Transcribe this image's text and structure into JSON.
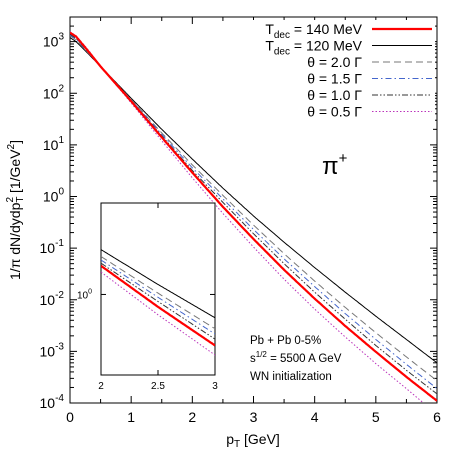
{
  "chart_data": {
    "type": "line",
    "xlabel": "p",
    "xlabel_sub": "T",
    "xlabel_unit": " [GeV]",
    "ylabel": "1/π dN/dydp",
    "ylabel_sub": "T",
    "ylabel_sup": "2",
    "ylabel_unit": " [1/GeV",
    "ylabel_unit_sup": "2",
    "ylabel_unit_end": "]",
    "xlim": [
      0,
      6
    ],
    "ylim": [
      0.0001,
      3000
    ],
    "yscale": "log",
    "xticks": [
      "0",
      "1",
      "2",
      "3",
      "4",
      "5",
      "6"
    ],
    "yticks": [
      {
        "base": "10",
        "exp": "3"
      },
      {
        "base": "10",
        "exp": "2"
      },
      {
        "base": "10",
        "exp": "1"
      },
      {
        "base": "10",
        "exp": "0"
      },
      {
        "base": "10",
        "exp": "-1"
      },
      {
        "base": "10",
        "exp": "-2"
      },
      {
        "base": "10",
        "exp": "-3"
      },
      {
        "base": "10",
        "exp": "-4"
      }
    ],
    "legend_position": "top-right",
    "particle_label": {
      "base": "π",
      "sup": "+"
    },
    "annotations": [
      "Pb + Pb  0-5%",
      "s",
      "1/2",
      " = 5500 A GeV",
      "WN initialization"
    ],
    "series": [
      {
        "name": "T",
        "name_sub": "dec",
        "name_rest": " = 140 MeV",
        "color": "#ff0000",
        "width": 2.2,
        "dash": "",
        "x": [
          0.0,
          0.1,
          0.3,
          0.5,
          1.0,
          1.5,
          2.0,
          2.5,
          3.0,
          3.5,
          4.0,
          4.5,
          5.0,
          5.5,
          6.0
        ],
        "values": [
          1500,
          1250,
          650,
          330,
          70,
          14,
          2.9,
          0.63,
          0.15,
          0.038,
          0.0105,
          0.0031,
          0.00098,
          0.00032,
          0.00011
        ]
      },
      {
        "name": "T",
        "name_sub": "dec",
        "name_rest": " = 120 MeV",
        "color": "#000000",
        "width": 1,
        "dash": "",
        "x": [
          0.0,
          0.1,
          0.3,
          0.5,
          1.0,
          1.5,
          2.0,
          2.5,
          3.0,
          3.5,
          4.0,
          4.5,
          5.0,
          5.5,
          6.0
        ],
        "values": [
          1200,
          1000,
          580,
          330,
          80,
          20,
          5.3,
          1.45,
          0.42,
          0.13,
          0.042,
          0.014,
          0.0048,
          0.0017,
          0.0006
        ]
      },
      {
        "name": "θ = 2.0 Γ",
        "color": "#777777",
        "width": 1,
        "dash": "7,4",
        "x": [
          0.0,
          0.1,
          0.3,
          0.5,
          1.0,
          1.5,
          2.0,
          2.5,
          3.0,
          3.5,
          4.0,
          4.5,
          5.0,
          5.5,
          6.0
        ],
        "values": [
          1300,
          1080,
          600,
          330,
          76,
          17,
          4.1,
          1.05,
          0.28,
          0.078,
          0.023,
          0.0071,
          0.0023,
          0.00078,
          0.00027
        ]
      },
      {
        "name": "θ = 1.5 Γ",
        "color": "#4466cc",
        "width": 1,
        "dash": "6,3,1.5,3",
        "x": [
          0.0,
          0.1,
          0.3,
          0.5,
          1.0,
          1.5,
          2.0,
          2.5,
          3.0,
          3.5,
          4.0,
          4.5,
          5.0,
          5.5,
          6.0
        ],
        "values": [
          1350,
          1120,
          610,
          330,
          74,
          16,
          3.6,
          0.9,
          0.23,
          0.062,
          0.018,
          0.0054,
          0.0017,
          0.00056,
          0.00019
        ]
      },
      {
        "name": "θ = 1.0 Γ",
        "color": "#333333",
        "width": 1,
        "dash": "6,2,1.5,2,1.5,2",
        "x": [
          0.0,
          0.1,
          0.3,
          0.5,
          1.0,
          1.5,
          2.0,
          2.5,
          3.0,
          3.5,
          4.0,
          4.5,
          5.0,
          5.5,
          6.0
        ],
        "values": [
          1400,
          1160,
          620,
          330,
          72,
          15,
          3.2,
          0.77,
          0.19,
          0.05,
          0.014,
          0.0042,
          0.0013,
          0.00043,
          0.00015
        ]
      },
      {
        "name": "θ = 0.5 Γ",
        "color": "#bb33bb",
        "width": 1,
        "dash": "1.5,2",
        "x": [
          0.0,
          0.1,
          0.3,
          0.5,
          1.0,
          1.5,
          2.0,
          2.5,
          3.0,
          3.5,
          4.0,
          4.5,
          5.0,
          5.5,
          6.0
        ],
        "values": [
          1550,
          1300,
          690,
          330,
          65,
          12,
          2.3,
          0.47,
          0.105,
          0.025,
          0.0066,
          0.0019,
          0.00058,
          0.00019,
          6e-05
        ]
      }
    ],
    "inset": {
      "xlim": [
        2,
        3
      ],
      "ylim": [
        0.05,
        30
      ],
      "yscale": "log",
      "xticks": [
        "2",
        "2.5",
        "3"
      ],
      "yticks": [
        {
          "base": "10",
          "exp": "0"
        }
      ]
    }
  }
}
